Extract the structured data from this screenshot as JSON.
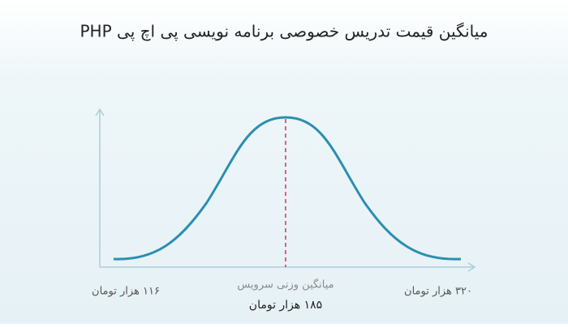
{
  "title": "میانگین قیمت تدریس خصوصی برنامه نویسی پی اچ پی PHP",
  "labels": {
    "min": "۱۱۶ هزار تومان",
    "average_caption": "میانگین وزنی سرویس",
    "average": "۱۸۵ هزار تومان",
    "max": "۳۲۰ هزار تومان"
  }
}
